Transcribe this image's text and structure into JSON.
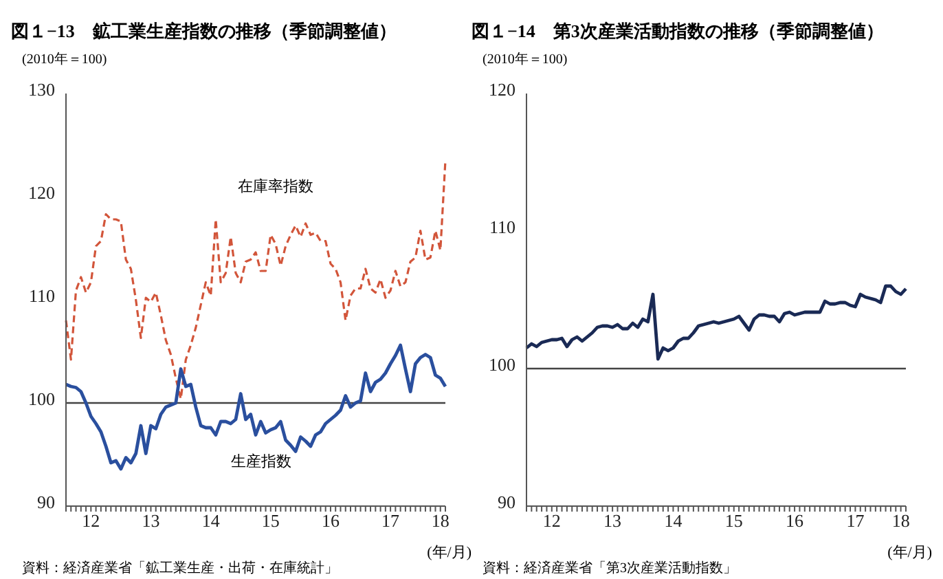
{
  "chart_data": [
    {
      "type": "line",
      "title": "図１−13　鉱工業生産指数の推移（季節調整値）",
      "ylabel": "(2010年＝100)",
      "xlabel": "(年/月)",
      "categories": [
        null,
        null,
        null,
        null,
        null,
        "12",
        null,
        null,
        null,
        null,
        null,
        null,
        null,
        null,
        null,
        null,
        null,
        "13",
        null,
        null,
        null,
        null,
        null,
        null,
        null,
        null,
        null,
        null,
        null,
        "14",
        null,
        null,
        null,
        null,
        null,
        null,
        null,
        null,
        null,
        null,
        null,
        "15",
        null,
        null,
        null,
        null,
        null,
        null,
        null,
        null,
        null,
        null,
        null,
        "16",
        null,
        null,
        null,
        null,
        null,
        null,
        null,
        null,
        null,
        null,
        null,
        "17",
        null,
        null,
        null,
        null,
        null,
        null,
        null,
        null,
        null,
        "18",
        null
      ],
      "series": [
        {
          "name": "在庫率指数",
          "color": "#d2553a",
          "line_style": "dashed",
          "values": [
            108.0,
            104.2,
            110.9,
            112.2,
            110.7,
            111.7,
            115.2,
            115.7,
            118.3,
            117.8,
            117.8,
            117.6,
            113.9,
            113.0,
            110.0,
            106.3,
            110.2,
            109.8,
            110.7,
            108.5,
            106.1,
            104.7,
            102.4,
            100.4,
            104.2,
            105.6,
            107.3,
            109.5,
            111.7,
            110.4,
            117.8,
            111.7,
            112.6,
            116.1,
            112.6,
            111.7,
            113.7,
            113.9,
            114.6,
            112.8,
            112.8,
            116.3,
            115.4,
            113.3,
            115.2,
            116.3,
            117.2,
            116.1,
            117.4,
            116.3,
            116.5,
            115.7,
            115.7,
            113.5,
            113.0,
            111.7,
            108.0,
            110.4,
            111.1,
            111.1,
            113.0,
            111.1,
            110.7,
            112.0,
            110.2,
            110.9,
            112.8,
            111.3,
            111.7,
            113.7,
            114.1,
            116.7,
            113.9,
            114.1,
            116.7,
            114.8,
            123.5
          ]
        },
        {
          "name": "生産指数",
          "color": "#2a4f9e",
          "line_style": "solid",
          "values": [
            101.8,
            101.6,
            101.5,
            101.1,
            100.0,
            98.7,
            98.0,
            97.2,
            95.8,
            94.2,
            94.4,
            93.6,
            94.7,
            94.2,
            95.1,
            97.8,
            95.1,
            97.8,
            97.5,
            98.9,
            99.6,
            99.8,
            100.0,
            103.3,
            101.6,
            101.8,
            99.6,
            97.8,
            97.6,
            97.6,
            96.9,
            98.2,
            98.2,
            98.0,
            98.4,
            100.9,
            98.4,
            98.9,
            96.9,
            98.2,
            97.1,
            97.4,
            97.6,
            98.2,
            96.4,
            95.9,
            95.3,
            96.7,
            96.3,
            95.8,
            96.9,
            97.2,
            98.0,
            98.4,
            98.8,
            99.3,
            100.7,
            99.6,
            100.0,
            100.2,
            102.9,
            101.1,
            102.0,
            102.3,
            102.9,
            103.8,
            104.6,
            105.6,
            103.3,
            101.1,
            103.8,
            104.4,
            104.7,
            104.4,
            102.7,
            102.4,
            101.6
          ]
        }
      ],
      "ylim": [
        90,
        130
      ],
      "yticks": [
        90,
        100,
        110,
        120,
        130
      ],
      "ref_lines": [
        {
          "axis": "y",
          "value": 100,
          "color": "#444444"
        }
      ],
      "annotations": [
        "資料：経済産業省「鉱工業生産・出荷・在庫統計」"
      ]
    },
    {
      "type": "line",
      "title": "図１−14　第3次産業活動指数の推移（季節調整値）",
      "ylabel": "(2010年＝100)",
      "xlabel": "(年/月)",
      "categories": [
        null,
        null,
        null,
        null,
        null,
        "12",
        null,
        null,
        null,
        null,
        null,
        null,
        null,
        null,
        null,
        null,
        null,
        "13",
        null,
        null,
        null,
        null,
        null,
        null,
        null,
        null,
        null,
        null,
        null,
        "14",
        null,
        null,
        null,
        null,
        null,
        null,
        null,
        null,
        null,
        null,
        null,
        "15",
        null,
        null,
        null,
        null,
        null,
        null,
        null,
        null,
        null,
        null,
        null,
        "16",
        null,
        null,
        null,
        null,
        null,
        null,
        null,
        null,
        null,
        null,
        null,
        "17",
        null,
        null,
        null,
        null,
        null,
        null,
        null,
        null,
        "18",
        null
      ],
      "series": [
        {
          "color": "#1a2a55",
          "line_style": "solid",
          "values": [
            101.5,
            101.8,
            101.6,
            101.9,
            102.0,
            102.1,
            102.1,
            102.2,
            101.6,
            102.1,
            102.3,
            102.0,
            102.3,
            102.6,
            103.0,
            103.1,
            103.1,
            103.0,
            103.2,
            102.9,
            102.9,
            103.3,
            103.0,
            103.6,
            103.4,
            105.4,
            100.7,
            101.5,
            101.3,
            101.5,
            102.0,
            102.2,
            102.2,
            102.6,
            103.1,
            103.2,
            103.3,
            103.4,
            103.3,
            103.4,
            103.5,
            103.6,
            103.8,
            103.3,
            102.8,
            103.6,
            103.9,
            103.9,
            103.8,
            103.8,
            103.4,
            104.0,
            104.1,
            103.9,
            104.0,
            104.1,
            104.1,
            104.1,
            104.1,
            104.9,
            104.7,
            104.7,
            104.8,
            104.8,
            104.6,
            104.5,
            105.4,
            105.2,
            105.1,
            105.0,
            104.8,
            106.0,
            106.0,
            105.6,
            105.4,
            105.8
          ]
        }
      ],
      "ylim": [
        90,
        120
      ],
      "yticks": [
        90,
        100,
        110,
        120
      ],
      "ref_lines": [
        {
          "axis": "y",
          "value": 100,
          "color": "#444444"
        }
      ],
      "annotations": [
        "資料：経済産業省「第3次産業活動指数」"
      ]
    }
  ]
}
